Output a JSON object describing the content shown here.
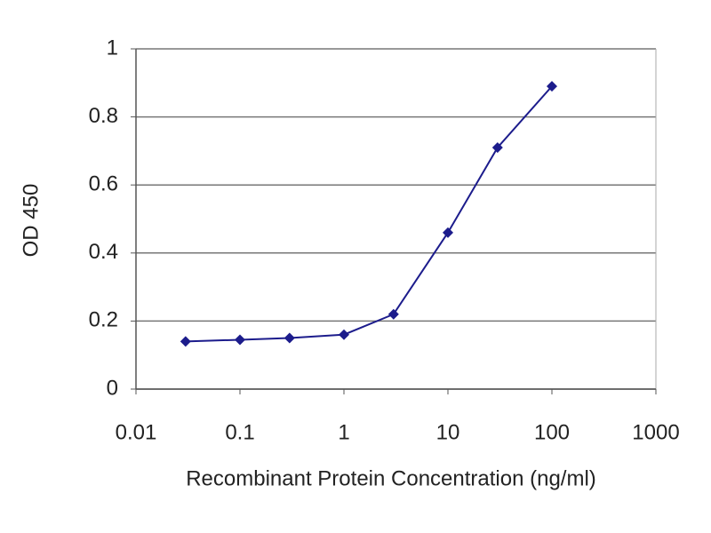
{
  "chart_data": {
    "type": "line",
    "xlabel": "Recombinant Protein Concentration (ng/ml)",
    "ylabel": "OD 450",
    "xscale": "log",
    "x": [
      0.03,
      0.1,
      0.3,
      1,
      3,
      10,
      30,
      100
    ],
    "series": [
      {
        "color": "#1c1c8c",
        "values": [
          0.14,
          0.145,
          0.15,
          0.16,
          0.22,
          0.46,
          0.71,
          0.89
        ]
      }
    ],
    "xlim": [
      0.01,
      1000
    ],
    "xticks": [
      0.01,
      0.1,
      1,
      10,
      100,
      1000
    ],
    "ylim": [
      0,
      1
    ],
    "yticks": [
      0,
      0.2,
      0.4,
      0.6,
      0.8,
      1
    ],
    "grid": true
  }
}
